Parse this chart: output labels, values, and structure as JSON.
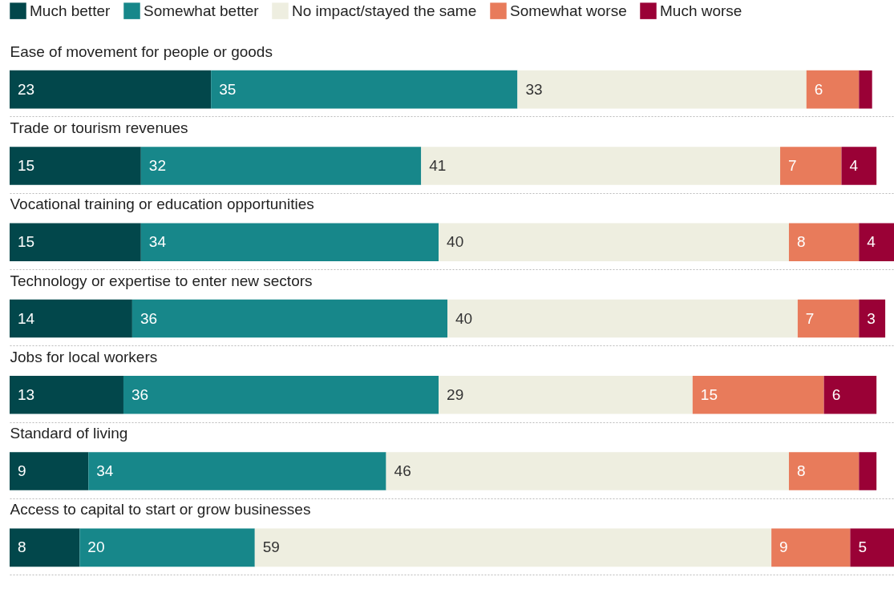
{
  "chart_data": {
    "type": "bar",
    "orientation": "horizontal",
    "stacked": true,
    "legend": "top",
    "grid": "y",
    "categories": [
      "Ease of movement for people or goods",
      "Trade or tourism revenues",
      "Vocational training or education opportunities",
      "Technology or expertise to enter new sectors",
      "Jobs for local workers",
      "Standard of living",
      "Access to capital to start or grow businesses"
    ],
    "series": [
      {
        "name": "Much better",
        "color": "#02474b",
        "values": [
          23,
          15,
          15,
          14,
          13,
          9,
          8
        ],
        "value_labels": [
          "23",
          "15",
          "15",
          "14",
          "13",
          "9",
          "8"
        ]
      },
      {
        "name": "Somewhat better",
        "color": "#17878a",
        "values": [
          35,
          32,
          34,
          36,
          36,
          34,
          20
        ],
        "value_labels": [
          "35",
          "32",
          "34",
          "36",
          "36",
          "34",
          "20"
        ]
      },
      {
        "name": "No impact/stayed the same",
        "color": "#eeeee0",
        "values": [
          33,
          41,
          40,
          40,
          29,
          46,
          59
        ],
        "value_labels": [
          "33",
          "41",
          "40",
          "40",
          "29",
          "46",
          "59"
        ]
      },
      {
        "name": "Somewhat worse",
        "color": "#e87b5b",
        "values": [
          6,
          7,
          8,
          7,
          15,
          8,
          9
        ],
        "value_labels": [
          "6",
          "7",
          "8",
          "7",
          "15",
          "8",
          "9"
        ]
      },
      {
        "name": "Much worse",
        "color": "#9a0136",
        "values": [
          1.5,
          4,
          4,
          3,
          6,
          2,
          5
        ],
        "value_labels": [
          null,
          "4",
          "4",
          "3",
          "6",
          null,
          "5"
        ]
      }
    ]
  }
}
